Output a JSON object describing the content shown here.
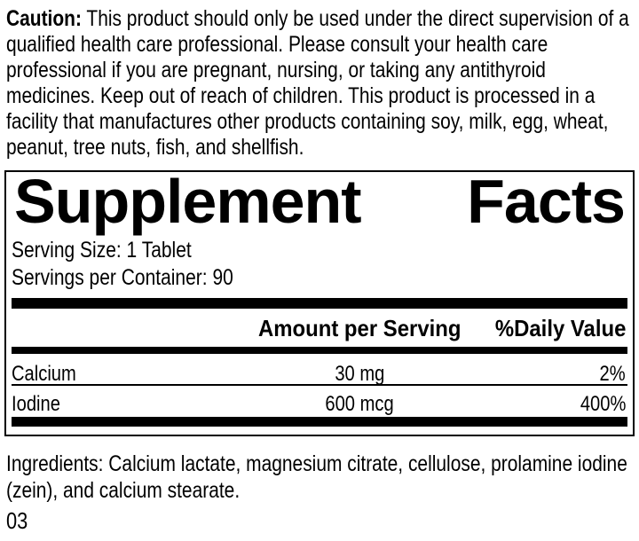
{
  "page": {
    "background_color": "#ffffff",
    "text_color": "#000000"
  },
  "caution": {
    "label": "Caution:",
    "text": " This product should only be used under the direct supervision of a qualified health care professional. Please consult your health care professional if you are pregnant, nursing, or taking any antithyroid medicines. Keep out of reach of children. This product is processed in a facility that manufactures other products containing soy, milk, egg, wheat, peanut, tree nuts, fish, and shellfish."
  },
  "supplement_facts": {
    "title": {
      "word1": "Supplement",
      "word2": "Facts"
    },
    "serving_size": "Serving Size: 1 Tablet",
    "servings_per_container": "Servings per Container: 90",
    "columns": {
      "amount_header": "Amount per Serving",
      "daily_value_header": "%Daily Value"
    },
    "rows": [
      {
        "nutrient": "Calcium",
        "amount": "30 mg",
        "daily_value": "2%"
      },
      {
        "nutrient": "Iodine",
        "amount": "600 mcg",
        "daily_value": "400%"
      }
    ]
  },
  "ingredients_text": "Ingredients: Calcium lactate, magnesium citrate, cellulose, prolamine iodine (zein), and calcium stearate.",
  "footer_code": "03"
}
